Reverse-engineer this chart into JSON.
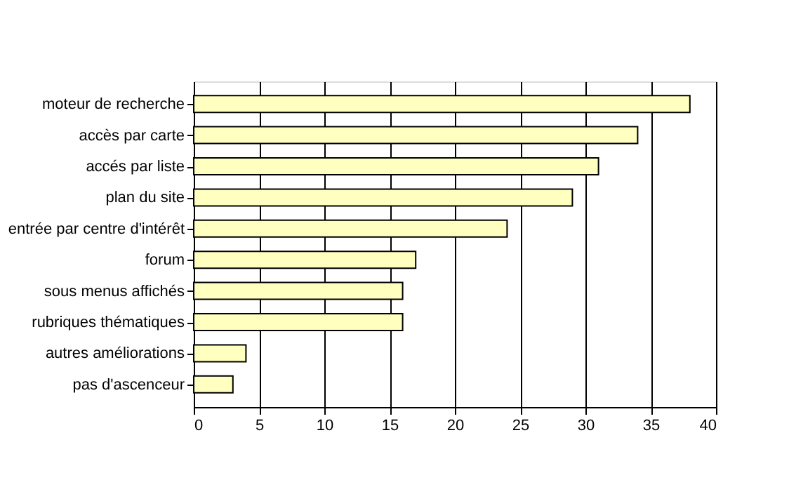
{
  "chart_data": {
    "type": "bar",
    "orientation": "horizontal",
    "categories": [
      "moteur de recherche",
      "accès par carte",
      "accés par liste",
      "plan du site",
      "entrée par centre d'intérêt",
      "forum",
      "sous menus affichés",
      "rubriques thématiques",
      "autres améliorations",
      "pas d'ascenceur"
    ],
    "values": [
      38,
      34,
      31,
      29,
      24,
      17,
      16,
      16,
      4,
      3
    ],
    "color": "#ffffc0",
    "xlim": [
      0,
      40
    ],
    "xticks": [
      0,
      5,
      10,
      15,
      20,
      25,
      30,
      35,
      40
    ],
    "grid": "x"
  }
}
